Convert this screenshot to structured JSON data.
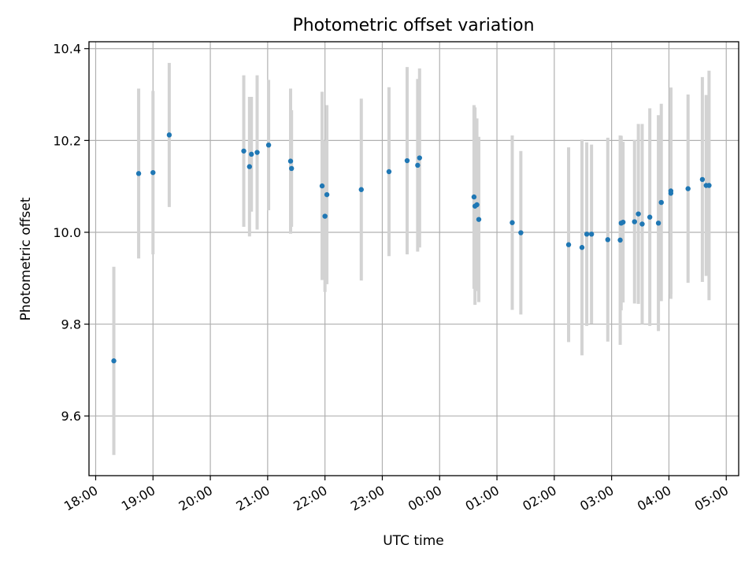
{
  "chart_data": {
    "type": "scatter",
    "title": "Photometric offset variation",
    "xlabel": "UTC time",
    "ylabel": "Photometric offset",
    "x_start_label": "18:00",
    "x_end_label": "05:00",
    "xlim": [
      "17:53",
      "05:13"
    ],
    "ylim": [
      9.47,
      10.415
    ],
    "xticks": [
      "18:00",
      "19:00",
      "20:00",
      "21:00",
      "22:00",
      "23:00",
      "00:00",
      "01:00",
      "02:00",
      "03:00",
      "04:00",
      "05:00"
    ],
    "yticks": [
      9.6,
      9.8,
      10.0,
      10.2,
      10.4
    ],
    "grid": true,
    "marker_color": "#1f77b4",
    "errorbar_color": "#d3d3d3",
    "points": [
      {
        "time": "18:19",
        "y": 9.72,
        "err": 0.205
      },
      {
        "time": "18:45",
        "y": 10.128,
        "err": 0.185
      },
      {
        "time": "19:00",
        "y": 10.13,
        "err": 0.178
      },
      {
        "time": "19:17",
        "y": 10.212,
        "err": 0.157
      },
      {
        "time": "20:35",
        "y": 10.177,
        "err": 0.165
      },
      {
        "time": "20:41",
        "y": 10.143,
        "err": 0.152
      },
      {
        "time": "20:43",
        "y": 10.17,
        "err": 0.125
      },
      {
        "time": "20:49",
        "y": 10.174,
        "err": 0.168
      },
      {
        "time": "21:01",
        "y": 10.19,
        "err": 0.142
      },
      {
        "time": "21:24",
        "y": 10.155,
        "err": 0.158
      },
      {
        "time": "21:25",
        "y": 10.139,
        "err": 0.127
      },
      {
        "time": "21:57",
        "y": 10.101,
        "err": 0.205
      },
      {
        "time": "22:00",
        "y": 10.035,
        "err": 0.165
      },
      {
        "time": "22:02",
        "y": 10.082,
        "err": 0.195
      },
      {
        "time": "22:38",
        "y": 10.093,
        "err": 0.198
      },
      {
        "time": "23:07",
        "y": 10.132,
        "err": 0.184
      },
      {
        "time": "23:26",
        "y": 10.156,
        "err": 0.204
      },
      {
        "time": "23:37",
        "y": 10.146,
        "err": 0.188
      },
      {
        "time": "23:39",
        "y": 10.162,
        "err": 0.195
      },
      {
        "time": "00:36",
        "y": 10.077,
        "err": 0.2
      },
      {
        "time": "00:37",
        "y": 10.057,
        "err": 0.215
      },
      {
        "time": "00:39",
        "y": 10.06,
        "err": 0.188
      },
      {
        "time": "00:41",
        "y": 10.028,
        "err": 0.18
      },
      {
        "time": "01:16",
        "y": 10.021,
        "err": 0.19
      },
      {
        "time": "01:25",
        "y": 9.999,
        "err": 0.178
      },
      {
        "time": "02:15",
        "y": 9.973,
        "err": 0.212
      },
      {
        "time": "02:29",
        "y": 9.967,
        "err": 0.235
      },
      {
        "time": "02:34",
        "y": 9.996,
        "err": 0.2
      },
      {
        "time": "02:39",
        "y": 9.996,
        "err": 0.195
      },
      {
        "time": "02:56",
        "y": 9.984,
        "err": 0.222
      },
      {
        "time": "03:09",
        "y": 9.983,
        "err": 0.228
      },
      {
        "time": "03:10",
        "y": 10.02,
        "err": 0.19
      },
      {
        "time": "03:12",
        "y": 10.022,
        "err": 0.175
      },
      {
        "time": "03:24",
        "y": 10.023,
        "err": 0.178
      },
      {
        "time": "03:28",
        "y": 10.04,
        "err": 0.196
      },
      {
        "time": "03:32",
        "y": 10.018,
        "err": 0.218
      },
      {
        "time": "03:40",
        "y": 10.033,
        "err": 0.237
      },
      {
        "time": "03:49",
        "y": 10.02,
        "err": 0.235
      },
      {
        "time": "03:52",
        "y": 10.065,
        "err": 0.215
      },
      {
        "time": "04:02",
        "y": 10.085,
        "err": 0.23
      },
      {
        "time": "04:02",
        "y": 10.09,
        "err": 0.225
      },
      {
        "time": "04:20",
        "y": 10.095,
        "err": 0.205
      },
      {
        "time": "04:35",
        "y": 10.115,
        "err": 0.223
      },
      {
        "time": "04:39",
        "y": 10.102,
        "err": 0.197
      },
      {
        "time": "04:42",
        "y": 10.102,
        "err": 0.25
      }
    ]
  }
}
